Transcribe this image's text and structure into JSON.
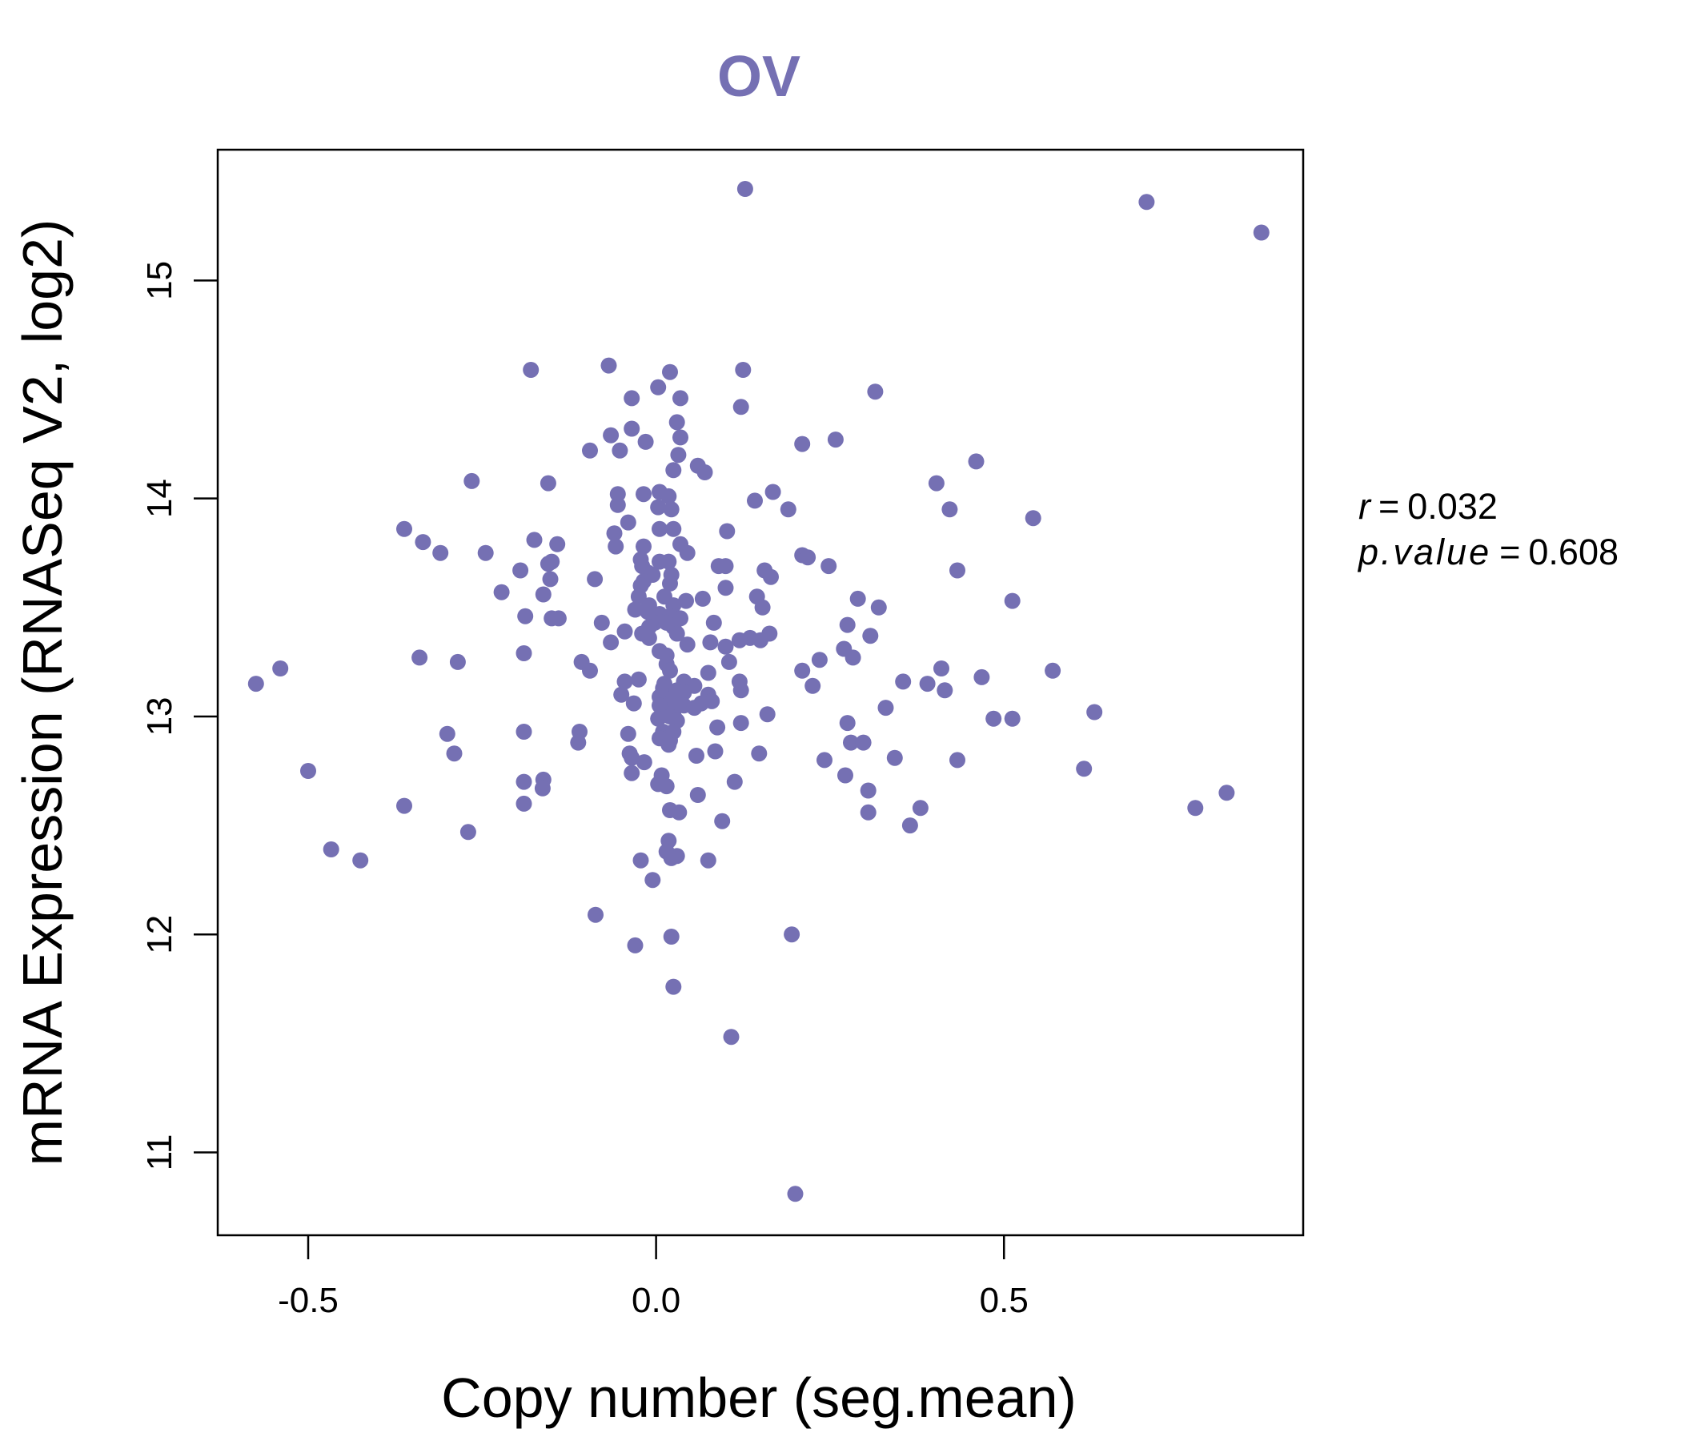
{
  "chart_data": {
    "type": "scatter",
    "title": "OV",
    "xlabel": "Copy number (seg.mean)",
    "ylabel": "mRNA Expression (RNASeq V2, log2)",
    "xlim": [
      -0.63,
      0.93
    ],
    "ylim": [
      10.62,
      15.6
    ],
    "x_ticks": [
      -0.5,
      0.0,
      0.5
    ],
    "x_tick_labels": [
      "-0.5",
      "0.0",
      "0.5"
    ],
    "y_ticks": [
      11,
      12,
      13,
      14,
      15
    ],
    "y_tick_labels": [
      "11",
      "12",
      "13",
      "14",
      "15"
    ],
    "grid": false,
    "color": "#7570b3",
    "stats": {
      "r_label": "r",
      "r_value": "0.032",
      "p_label": "p.value",
      "p_value": "0.608"
    },
    "points": [
      {
        "x": 0.128,
        "y": 15.42
      },
      {
        "x": 0.705,
        "y": 15.36
      },
      {
        "x": 0.87,
        "y": 15.22
      },
      {
        "x": -0.068,
        "y": 14.61
      },
      {
        "x": -0.18,
        "y": 14.59
      },
      {
        "x": 0.02,
        "y": 14.58
      },
      {
        "x": 0.125,
        "y": 14.59
      },
      {
        "x": 0.003,
        "y": 14.51
      },
      {
        "x": 0.315,
        "y": 14.49
      },
      {
        "x": -0.035,
        "y": 14.46
      },
      {
        "x": 0.035,
        "y": 14.46
      },
      {
        "x": 0.122,
        "y": 14.42
      },
      {
        "x": 0.03,
        "y": 14.35
      },
      {
        "x": -0.035,
        "y": 14.32
      },
      {
        "x": -0.065,
        "y": 14.29
      },
      {
        "x": 0.035,
        "y": 14.28
      },
      {
        "x": 0.258,
        "y": 14.27
      },
      {
        "x": -0.015,
        "y": 14.26
      },
      {
        "x": 0.21,
        "y": 14.25
      },
      {
        "x": -0.095,
        "y": 14.22
      },
      {
        "x": -0.052,
        "y": 14.22
      },
      {
        "x": 0.032,
        "y": 14.2
      },
      {
        "x": 0.46,
        "y": 14.17
      },
      {
        "x": 0.06,
        "y": 14.15
      },
      {
        "x": 0.025,
        "y": 14.13
      },
      {
        "x": 0.07,
        "y": 14.12
      },
      {
        "x": -0.265,
        "y": 14.08
      },
      {
        "x": -0.155,
        "y": 14.07
      },
      {
        "x": 0.403,
        "y": 14.07
      },
      {
        "x": 0.168,
        "y": 14.03
      },
      {
        "x": -0.055,
        "y": 14.02
      },
      {
        "x": -0.018,
        "y": 14.02
      },
      {
        "x": 0.005,
        "y": 14.03
      },
      {
        "x": 0.018,
        "y": 14.01
      },
      {
        "x": 0.142,
        "y": 13.99
      },
      {
        "x": -0.055,
        "y": 13.97
      },
      {
        "x": 0.003,
        "y": 13.96
      },
      {
        "x": 0.022,
        "y": 13.95
      },
      {
        "x": 0.19,
        "y": 13.95
      },
      {
        "x": 0.422,
        "y": 13.95
      },
      {
        "x": 0.542,
        "y": 13.91
      },
      {
        "x": -0.04,
        "y": 13.89
      },
      {
        "x": -0.362,
        "y": 13.86
      },
      {
        "x": 0.005,
        "y": 13.86
      },
      {
        "x": 0.025,
        "y": 13.86
      },
      {
        "x": -0.06,
        "y": 13.84
      },
      {
        "x": 0.102,
        "y": 13.85
      },
      {
        "x": -0.335,
        "y": 13.8
      },
      {
        "x": -0.175,
        "y": 13.81
      },
      {
        "x": -0.142,
        "y": 13.79
      },
      {
        "x": -0.018,
        "y": 13.78
      },
      {
        "x": 0.035,
        "y": 13.79
      },
      {
        "x": -0.058,
        "y": 13.78
      },
      {
        "x": -0.31,
        "y": 13.75
      },
      {
        "x": -0.245,
        "y": 13.75
      },
      {
        "x": 0.045,
        "y": 13.75
      },
      {
        "x": 0.21,
        "y": 13.74
      },
      {
        "x": 0.218,
        "y": 13.73
      },
      {
        "x": -0.022,
        "y": 13.72
      },
      {
        "x": -0.15,
        "y": 13.71
      },
      {
        "x": 0.005,
        "y": 13.71
      },
      {
        "x": 0.018,
        "y": 13.71
      },
      {
        "x": -0.155,
        "y": 13.7
      },
      {
        "x": -0.02,
        "y": 13.69
      },
      {
        "x": 0.09,
        "y": 13.69
      },
      {
        "x": 0.1,
        "y": 13.69
      },
      {
        "x": 0.248,
        "y": 13.69
      },
      {
        "x": -0.195,
        "y": 13.67
      },
      {
        "x": -0.012,
        "y": 13.66
      },
      {
        "x": 0.156,
        "y": 13.67
      },
      {
        "x": 0.433,
        "y": 13.67
      },
      {
        "x": -0.005,
        "y": 13.65
      },
      {
        "x": 0.022,
        "y": 13.65
      },
      {
        "x": 0.165,
        "y": 13.64
      },
      {
        "x": -0.152,
        "y": 13.63
      },
      {
        "x": -0.088,
        "y": 13.63
      },
      {
        "x": -0.018,
        "y": 13.62
      },
      {
        "x": 0.02,
        "y": 13.61
      },
      {
        "x": -0.022,
        "y": 13.6
      },
      {
        "x": 0.1,
        "y": 13.59
      },
      {
        "x": -0.222,
        "y": 13.57
      },
      {
        "x": -0.162,
        "y": 13.56
      },
      {
        "x": -0.025,
        "y": 13.55
      },
      {
        "x": 0.012,
        "y": 13.55
      },
      {
        "x": 0.145,
        "y": 13.55
      },
      {
        "x": 0.067,
        "y": 13.54
      },
      {
        "x": 0.29,
        "y": 13.54
      },
      {
        "x": 0.512,
        "y": 13.53
      },
      {
        "x": 0.043,
        "y": 13.53
      },
      {
        "x": -0.01,
        "y": 13.51
      },
      {
        "x": 0.025,
        "y": 13.51
      },
      {
        "x": 0.153,
        "y": 13.5
      },
      {
        "x": 0.32,
        "y": 13.5
      },
      {
        "x": -0.03,
        "y": 13.49
      },
      {
        "x": -0.012,
        "y": 13.48
      },
      {
        "x": 0.005,
        "y": 13.47
      },
      {
        "x": -0.188,
        "y": 13.46
      },
      {
        "x": 0.02,
        "y": 13.46
      },
      {
        "x": -0.15,
        "y": 13.45
      },
      {
        "x": -0.14,
        "y": 13.45
      },
      {
        "x": 0.035,
        "y": 13.45
      },
      {
        "x": -0.002,
        "y": 13.43
      },
      {
        "x": 0.015,
        "y": 13.43
      },
      {
        "x": -0.078,
        "y": 13.43
      },
      {
        "x": 0.083,
        "y": 13.43
      },
      {
        "x": 0.275,
        "y": 13.42
      },
      {
        "x": -0.01,
        "y": 13.41
      },
      {
        "x": 0.025,
        "y": 13.41
      },
      {
        "x": -0.045,
        "y": 13.39
      },
      {
        "x": -0.02,
        "y": 13.38
      },
      {
        "x": 0.03,
        "y": 13.38
      },
      {
        "x": 0.163,
        "y": 13.38
      },
      {
        "x": 0.308,
        "y": 13.37
      },
      {
        "x": 0.135,
        "y": 13.36
      },
      {
        "x": -0.01,
        "y": 13.36
      },
      {
        "x": 0.12,
        "y": 13.35
      },
      {
        "x": 0.15,
        "y": 13.35
      },
      {
        "x": -0.065,
        "y": 13.34
      },
      {
        "x": 0.078,
        "y": 13.34
      },
      {
        "x": 0.045,
        "y": 13.33
      },
      {
        "x": 0.1,
        "y": 13.32
      },
      {
        "x": 0.27,
        "y": 13.31
      },
      {
        "x": 0.005,
        "y": 13.3
      },
      {
        "x": -0.19,
        "y": 13.29
      },
      {
        "x": 0.015,
        "y": 13.28
      },
      {
        "x": 0.283,
        "y": 13.27
      },
      {
        "x": -0.34,
        "y": 13.27
      },
      {
        "x": 0.235,
        "y": 13.26
      },
      {
        "x": -0.107,
        "y": 13.25
      },
      {
        "x": 0.105,
        "y": 13.25
      },
      {
        "x": -0.285,
        "y": 13.25
      },
      {
        "x": 0.015,
        "y": 13.24
      },
      {
        "x": 0.41,
        "y": 13.22
      },
      {
        "x": -0.54,
        "y": 13.22
      },
      {
        "x": 0.02,
        "y": 13.21
      },
      {
        "x": -0.095,
        "y": 13.21
      },
      {
        "x": 0.21,
        "y": 13.21
      },
      {
        "x": 0.57,
        "y": 13.21
      },
      {
        "x": 0.075,
        "y": 13.2
      },
      {
        "x": 0.468,
        "y": 13.18
      },
      {
        "x": -0.025,
        "y": 13.17
      },
      {
        "x": 0.12,
        "y": 13.16
      },
      {
        "x": 0.355,
        "y": 13.16
      },
      {
        "x": -0.045,
        "y": 13.16
      },
      {
        "x": 0.04,
        "y": 13.16
      },
      {
        "x": 0.012,
        "y": 13.15
      },
      {
        "x": 0.39,
        "y": 13.15
      },
      {
        "x": -0.575,
        "y": 13.15
      },
      {
        "x": 0.055,
        "y": 13.14
      },
      {
        "x": 0.225,
        "y": 13.14
      },
      {
        "x": 0.01,
        "y": 13.13
      },
      {
        "x": 0.415,
        "y": 13.12
      },
      {
        "x": 0.03,
        "y": 13.12
      },
      {
        "x": 0.122,
        "y": 13.12
      },
      {
        "x": 0.04,
        "y": 13.11
      },
      {
        "x": -0.05,
        "y": 13.1
      },
      {
        "x": 0.075,
        "y": 13.1
      },
      {
        "x": 0.005,
        "y": 13.09
      },
      {
        "x": 0.015,
        "y": 13.08
      },
      {
        "x": 0.025,
        "y": 13.08
      },
      {
        "x": 0.08,
        "y": 13.07
      },
      {
        "x": 0.065,
        "y": 13.06
      },
      {
        "x": -0.032,
        "y": 13.06
      },
      {
        "x": 0.005,
        "y": 13.05
      },
      {
        "x": 0.04,
        "y": 13.05
      },
      {
        "x": 0.055,
        "y": 13.04
      },
      {
        "x": 0.33,
        "y": 13.04
      },
      {
        "x": 0.63,
        "y": 13.02
      },
      {
        "x": 0.025,
        "y": 13.02
      },
      {
        "x": 0.015,
        "y": 13.01
      },
      {
        "x": 0.16,
        "y": 13.01
      },
      {
        "x": 0.02,
        "y": 13.0
      },
      {
        "x": 0.485,
        "y": 12.99
      },
      {
        "x": 0.512,
        "y": 12.99
      },
      {
        "x": 0.003,
        "y": 12.99
      },
      {
        "x": 0.03,
        "y": 12.98
      },
      {
        "x": 0.122,
        "y": 12.97
      },
      {
        "x": 0.275,
        "y": 12.97
      },
      {
        "x": 0.088,
        "y": 12.95
      },
      {
        "x": -0.11,
        "y": 12.93
      },
      {
        "x": -0.19,
        "y": 12.93
      },
      {
        "x": 0.01,
        "y": 12.93
      },
      {
        "x": 0.025,
        "y": 12.93
      },
      {
        "x": -0.04,
        "y": 12.92
      },
      {
        "x": -0.3,
        "y": 12.92
      },
      {
        "x": 0.005,
        "y": 12.9
      },
      {
        "x": 0.02,
        "y": 12.89
      },
      {
        "x": -0.112,
        "y": 12.88
      },
      {
        "x": 0.28,
        "y": 12.88
      },
      {
        "x": 0.298,
        "y": 12.88
      },
      {
        "x": 0.018,
        "y": 12.87
      },
      {
        "x": -0.038,
        "y": 12.83
      },
      {
        "x": -0.29,
        "y": 12.83
      },
      {
        "x": 0.058,
        "y": 12.82
      },
      {
        "x": 0.148,
        "y": 12.83
      },
      {
        "x": 0.085,
        "y": 12.84
      },
      {
        "x": -0.035,
        "y": 12.81
      },
      {
        "x": 0.343,
        "y": 12.81
      },
      {
        "x": 0.242,
        "y": 12.8
      },
      {
        "x": 0.433,
        "y": 12.8
      },
      {
        "x": -0.017,
        "y": 12.79
      },
      {
        "x": -0.5,
        "y": 12.75
      },
      {
        "x": 0.615,
        "y": 12.76
      },
      {
        "x": -0.035,
        "y": 12.74
      },
      {
        "x": 0.008,
        "y": 12.73
      },
      {
        "x": 0.272,
        "y": 12.73
      },
      {
        "x": -0.162,
        "y": 12.71
      },
      {
        "x": -0.19,
        "y": 12.7
      },
      {
        "x": 0.113,
        "y": 12.7
      },
      {
        "x": 0.003,
        "y": 12.69
      },
      {
        "x": 0.015,
        "y": 12.68
      },
      {
        "x": -0.163,
        "y": 12.67
      },
      {
        "x": 0.305,
        "y": 12.66
      },
      {
        "x": 0.82,
        "y": 12.65
      },
      {
        "x": 0.06,
        "y": 12.64
      },
      {
        "x": -0.19,
        "y": 12.6
      },
      {
        "x": -0.362,
        "y": 12.59
      },
      {
        "x": 0.38,
        "y": 12.58
      },
      {
        "x": 0.775,
        "y": 12.58
      },
      {
        "x": 0.02,
        "y": 12.57
      },
      {
        "x": 0.033,
        "y": 12.56
      },
      {
        "x": 0.305,
        "y": 12.56
      },
      {
        "x": 0.095,
        "y": 12.52
      },
      {
        "x": 0.365,
        "y": 12.5
      },
      {
        "x": -0.27,
        "y": 12.47
      },
      {
        "x": 0.018,
        "y": 12.43
      },
      {
        "x": -0.467,
        "y": 12.39
      },
      {
        "x": 0.015,
        "y": 12.38
      },
      {
        "x": 0.03,
        "y": 12.36
      },
      {
        "x": 0.022,
        "y": 12.35
      },
      {
        "x": -0.022,
        "y": 12.34
      },
      {
        "x": 0.075,
        "y": 12.34
      },
      {
        "x": -0.425,
        "y": 12.34
      },
      {
        "x": -0.005,
        "y": 12.25
      },
      {
        "x": -0.087,
        "y": 12.09
      },
      {
        "x": 0.195,
        "y": 12.0
      },
      {
        "x": 0.022,
        "y": 11.99
      },
      {
        "x": -0.03,
        "y": 11.95
      },
      {
        "x": 0.025,
        "y": 11.76
      },
      {
        "x": 0.108,
        "y": 11.53
      },
      {
        "x": 0.2,
        "y": 10.81
      }
    ]
  }
}
